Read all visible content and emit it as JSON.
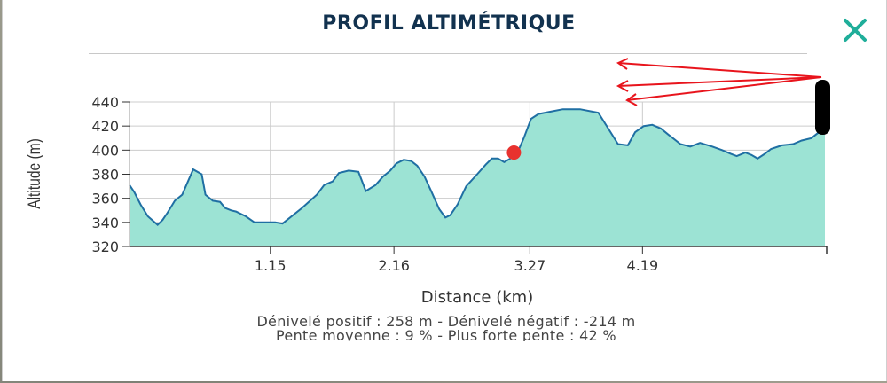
{
  "header": {
    "title": "PROFIL ALTIMÉTRIQUE"
  },
  "stats": {
    "line1": "Dénivelé positif : 258 m - Dénivelé négatif : -214 m",
    "line2": "Pente moyenne : 9 % - Plus forte pente : 42 %"
  },
  "colors": {
    "fill": "#9ce3d4",
    "line": "#1f6fa3",
    "marker": "#e8322f",
    "close": "#1fae9a",
    "annotation": "#e8141c",
    "grid": "#cccccc"
  },
  "icons": {
    "close": "close-icon"
  },
  "chart_data": {
    "type": "area",
    "title": "PROFIL ALTIMÉTRIQUE",
    "xlabel": "Distance (km)",
    "ylabel": "Altitude (m)",
    "ylim": [
      320,
      440
    ],
    "xlim": [
      0.0,
      5.68
    ],
    "yticks": [
      320,
      340,
      360,
      380,
      400,
      420,
      440
    ],
    "xticks": [
      1.15,
      2.16,
      3.27,
      4.19
    ],
    "xtick_labels": [
      "1.15",
      "2.16",
      "3.27",
      "4.19"
    ],
    "grid": true,
    "marker": {
      "x": 3.14,
      "y": 398
    },
    "series": [
      {
        "x": [
          0.0,
          0.04,
          0.09,
          0.15,
          0.23,
          0.27,
          0.31,
          0.37,
          0.43,
          0.52,
          0.59,
          0.62,
          0.68,
          0.74,
          0.78,
          0.83,
          0.87,
          0.95,
          1.02,
          1.11,
          1.19,
          1.25,
          1.41,
          1.53,
          1.59,
          1.66,
          1.71,
          1.79,
          1.87,
          1.93,
          2.01,
          2.07,
          2.13,
          2.18,
          2.24,
          2.3,
          2.35,
          2.41,
          2.46,
          2.53,
          2.58,
          2.62,
          2.68,
          2.75,
          2.84,
          2.91,
          2.96,
          3.01,
          3.06,
          3.16,
          3.22,
          3.28,
          3.34,
          3.44,
          3.54,
          3.68,
          3.83,
          3.91,
          3.99,
          4.07,
          4.13,
          4.2,
          4.27,
          4.34,
          4.4,
          4.5,
          4.58,
          4.66,
          4.76,
          4.84,
          4.91,
          4.96,
          5.03,
          5.08,
          5.13,
          5.19,
          5.24,
          5.33,
          5.42,
          5.49,
          5.57,
          5.62,
          5.68
        ],
        "y": [
          371,
          365,
          355,
          345,
          338,
          342,
          348,
          358,
          363,
          384,
          380,
          363,
          358,
          357,
          352,
          350,
          349,
          345,
          340,
          340,
          340,
          339,
          352,
          363,
          371,
          374,
          381,
          383,
          382,
          366,
          371,
          378,
          383,
          389,
          392,
          391,
          387,
          378,
          367,
          351,
          344,
          346,
          355,
          370,
          380,
          388,
          393,
          393,
          390,
          396,
          410,
          426,
          430,
          432,
          434,
          434,
          431,
          418,
          405,
          404,
          415,
          420,
          421,
          418,
          413,
          405,
          403,
          406,
          403,
          400,
          397,
          395,
          398,
          396,
          393,
          397,
          401,
          404,
          405,
          408,
          410,
          414,
          416
        ]
      }
    ]
  }
}
